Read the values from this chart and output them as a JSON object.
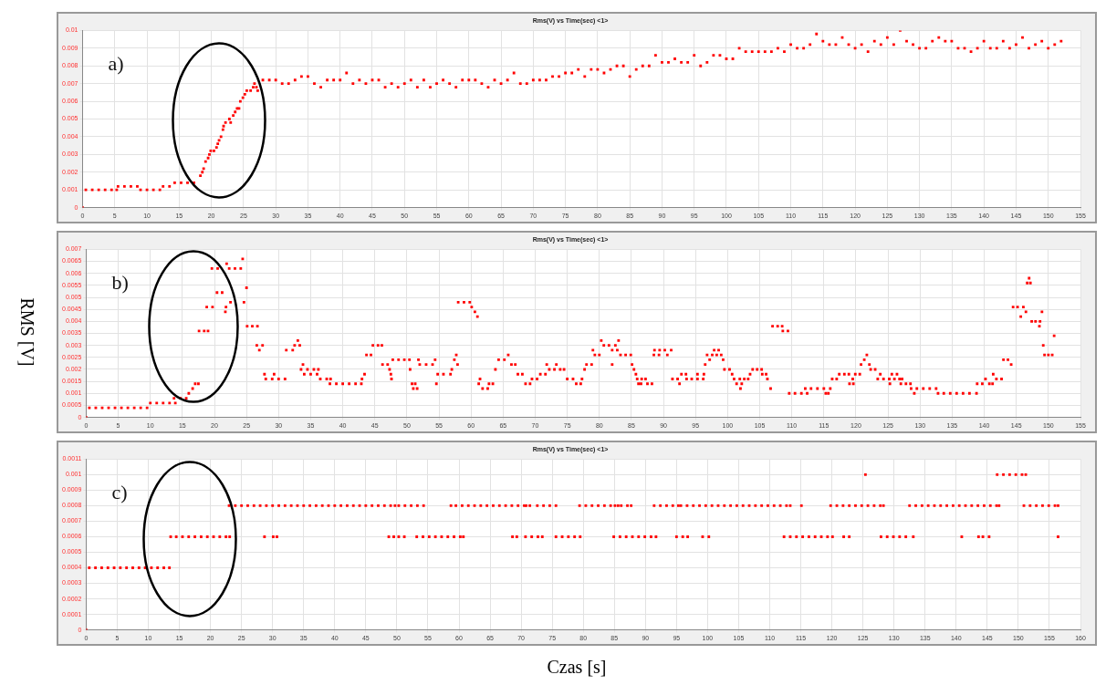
{
  "chart_data": [
    {
      "type": "scatter",
      "title": "Rms(V) vs Time(sec) <1>",
      "annotations": [
        "a)"
      ],
      "marker": "square",
      "grid": true,
      "xlim": [
        0,
        155
      ],
      "xticks": [
        0,
        5,
        10,
        15,
        20,
        25,
        30,
        35,
        40,
        45,
        50,
        55,
        60,
        65,
        70,
        75,
        80,
        85,
        90,
        95,
        100,
        105,
        110,
        115,
        120,
        125,
        130,
        135,
        140,
        145,
        150,
        155
      ],
      "ylim": [
        0,
        0.01
      ],
      "yticks": [
        0,
        0.001,
        0.002,
        0.003,
        0.004,
        0.005,
        0.006,
        0.007,
        0.008,
        0.009,
        0.01
      ],
      "series": [
        {
          "color": "#ff0000",
          "x": [
            0,
            0.5,
            1.5,
            2.5,
            3.5,
            4.5,
            5.3,
            5.5,
            6.5,
            7.5,
            8.5,
            9,
            10,
            11,
            12,
            12.5,
            13.5,
            14.3,
            15.3,
            16.3,
            17.3,
            18.3,
            18.6,
            18.8,
            19.1,
            19.5,
            19.7,
            19.9,
            20.4,
            20.8,
            21,
            21.2,
            21.5,
            21.8,
            21.9,
            22.2,
            22.8,
            23,
            23.4,
            23.7,
            24,
            24.3,
            24.5,
            24.9,
            25.2,
            25.5,
            26.1,
            26.5,
            26.7,
            27,
            27.2,
            28,
            29,
            30,
            31,
            32,
            33,
            34,
            35,
            36,
            37,
            38,
            39,
            40,
            41,
            42,
            43,
            44,
            45,
            46,
            47,
            48,
            49,
            50,
            51,
            52,
            53,
            54,
            55,
            56,
            57,
            58,
            59,
            60,
            61,
            62,
            63,
            64,
            65,
            66,
            67,
            68,
            69,
            70,
            71,
            72,
            73,
            74,
            75,
            76,
            77,
            78,
            79,
            80,
            81,
            82,
            83,
            84,
            85,
            86,
            87,
            88,
            89,
            90,
            91,
            92,
            93,
            94,
            95,
            96,
            97,
            98,
            99,
            100,
            101,
            102,
            103,
            104,
            105,
            106,
            107,
            108,
            109,
            110,
            111,
            112,
            113,
            114,
            115,
            116,
            117,
            118,
            119,
            120,
            121,
            122,
            123,
            124,
            125,
            126,
            127,
            128,
            129,
            130,
            131,
            132,
            133,
            134,
            135,
            136,
            137,
            138,
            139,
            140,
            141,
            142,
            143,
            144,
            145,
            146,
            147,
            148,
            149,
            150,
            151,
            152
          ],
          "values": [
            0,
            0.001,
            0.001,
            0.001,
            0.001,
            0.001,
            0.001,
            0.0012,
            0.0012,
            0.0012,
            0.0012,
            0.001,
            0.001,
            0.001,
            0.001,
            0.0012,
            0.0012,
            0.0014,
            0.0014,
            0.0014,
            0.0014,
            0.0018,
            0.002,
            0.0022,
            0.0026,
            0.0028,
            0.003,
            0.0032,
            0.0032,
            0.0034,
            0.0036,
            0.0038,
            0.004,
            0.0044,
            0.0046,
            0.0048,
            0.005,
            0.0048,
            0.0052,
            0.0054,
            0.0056,
            0.0056,
            0.006,
            0.0062,
            0.0064,
            0.0066,
            0.0066,
            0.0068,
            0.007,
            0.0068,
            0.0066,
            0.0072,
            0.0072,
            0.0072,
            0.007,
            0.007,
            0.0072,
            0.0074,
            0.0074,
            0.007,
            0.0068,
            0.0072,
            0.0072,
            0.0072,
            0.0076,
            0.007,
            0.0072,
            0.007,
            0.0072,
            0.0072,
            0.0068,
            0.007,
            0.0068,
            0.007,
            0.0072,
            0.0068,
            0.0072,
            0.0068,
            0.007,
            0.0072,
            0.007,
            0.0068,
            0.0072,
            0.0072,
            0.0072,
            0.007,
            0.0068,
            0.0072,
            0.007,
            0.0072,
            0.0076,
            0.007,
            0.007,
            0.0072,
            0.0072,
            0.0072,
            0.0074,
            0.0074,
            0.0076,
            0.0076,
            0.0078,
            0.0074,
            0.0078,
            0.0078,
            0.0076,
            0.0078,
            0.008,
            0.008,
            0.0074,
            0.0078,
            0.008,
            0.008,
            0.0086,
            0.0082,
            0.0082,
            0.0084,
            0.0082,
            0.0082,
            0.0086,
            0.008,
            0.0082,
            0.0086,
            0.0086,
            0.0084,
            0.0084,
            0.009,
            0.0088,
            0.0088,
            0.0088,
            0.0088,
            0.0088,
            0.009,
            0.0088,
            0.0092,
            0.009,
            0.009,
            0.0092,
            0.0098,
            0.0094,
            0.0092,
            0.0092,
            0.0096,
            0.0092,
            0.009,
            0.0092,
            0.0088,
            0.0094,
            0.0092,
            0.0096,
            0.0092,
            0.01,
            0.0094,
            0.0092,
            0.009,
            0.009,
            0.0094,
            0.0096,
            0.0094,
            0.0094,
            0.009,
            0.009,
            0.0088,
            0.009,
            0.0094,
            0.009,
            0.009,
            0.0094,
            0.009,
            0.0092,
            0.0096,
            0.009,
            0.0092,
            0.0094,
            0.009,
            0.0092,
            0.0094
          ]
        }
      ]
    },
    {
      "type": "scatter",
      "title": "Rms(V) vs Time(sec) <1>",
      "annotations": [
        "b)"
      ],
      "ylabel": "RMS [V]",
      "marker": "square",
      "grid": true,
      "xlim": [
        0,
        155
      ],
      "xticks": [
        0,
        5,
        10,
        15,
        20,
        25,
        30,
        35,
        40,
        45,
        50,
        55,
        60,
        65,
        70,
        75,
        80,
        85,
        90,
        95,
        100,
        105,
        110,
        115,
        120,
        125,
        130,
        135,
        140,
        145,
        150,
        155
      ],
      "ylim": [
        0,
        0.007
      ],
      "yticks": [
        0,
        0.0005,
        0.001,
        0.0015,
        0.002,
        0.0025,
        0.003,
        0.0035,
        0.004,
        0.0045,
        0.005,
        0.0055,
        0.006,
        0.0065,
        0.007
      ],
      "series": [
        {
          "color": "#ff0000",
          "x": [
            0,
            0.5,
            1.5,
            2.5,
            3.5,
            4.5,
            5.5,
            6.5,
            7.5,
            8.5,
            9.5,
            10,
            11,
            12,
            13,
            13.9,
            13.7,
            14.7,
            15.6,
            16,
            16.6,
            17,
            17.5,
            17.6,
            18.4,
            19,
            18.8,
            19.7,
            19.6,
            20.5,
            20.4,
            21.2,
            21.7,
            21.8,
            21.9,
            22.3,
            22.5,
            23.2,
            24.1,
            24.4,
            24.6,
            25,
            25.1,
            25.9,
            26.7,
            26.6,
            27.5,
            27,
            27.8,
            28,
            29,
            29.3,
            30,
            31,
            31.2,
            32.2,
            32.5,
            33.3,
            33,
            33.5,
            33.8,
            34,
            34.5,
            35,
            35.5,
            36.2,
            36,
            36.5,
            37.5,
            38.1,
            38,
            39,
            40,
            41,
            42,
            42.9,
            43,
            43.4,
            43.7,
            44.4,
            44.7,
            45.5,
            46.1,
            46.2,
            47,
            47.3,
            47.5,
            47.6,
            47.8,
            48.7,
            49.6,
            50.4,
            50.5,
            50.8,
            51,
            51.6,
            51.3,
            51.8,
            52,
            53,
            54,
            54.4,
            54.6,
            54.8,
            55.7,
            56.8,
            57,
            57.4,
            57.7,
            57.9,
            58,
            58.9,
            59.8,
            60.1,
            60.6,
            61,
            61.2,
            61.4,
            61.8,
            62.6,
            62.8,
            63.4,
            63.8,
            64.3,
            65.2,
            65.8,
            66.3,
            66.9,
            67.3,
            68,
            68.5,
            69.2,
            69.5,
            70.3,
            70.8,
            71.6,
            71.8,
            72.2,
            73,
            73.3,
            73.9,
            74.5,
            75,
            75.9,
            76.4,
            77.1,
            77.3,
            77.7,
            78,
            78.8,
            79,
            79.3,
            80,
            80.3,
            80.7,
            81.5,
            82,
            82,
            82.5,
            82.8,
            83,
            83.3,
            84.1,
            84.9,
            85.1,
            85.4,
            85.7,
            85.9,
            86.1,
            86.6,
            87.2,
            86.5,
            87.5,
            88.2,
            88.5,
            88.6,
            89.3,
            89.4,
            90.2,
            90.6,
            91.2,
            91.4,
            92.2,
            92.5,
            92.8,
            93.5,
            93.6,
            94.4,
            95.3,
            95.3,
            96.2,
            96.3,
            96.5,
            96.8,
            97.2,
            97.6,
            97.9,
            98.6,
            98.3,
            99,
            99.3,
            99.5,
            100.3,
            100.7,
            101,
            101.4,
            102,
            102.2,
            101.9,
            102.6,
            103.2,
            103.5,
            103.9,
            104.6,
            105.3,
            105.4,
            106,
            106.2,
            106.7,
            107,
            107.8,
            108.5,
            108.6,
            109.4,
            109.6,
            110.5,
            111.5,
            112.4,
            112.1,
            113,
            114,
            115,
            116,
            115.3,
            115.7,
            116.3,
            117,
            117.4,
            118.2,
            118.9,
            119,
            119.6,
            119.5,
            119.9,
            120.6,
            120.8,
            121.3,
            121.7,
            122.1,
            122.3,
            123,
            123.4,
            123.8,
            124.3,
            125.3,
            125.2,
            125.6,
            126,
            126.4,
            126.8,
            127.2,
            127,
            127.8,
            128.5,
            128.6,
            129.1,
            129.5,
            130.5,
            131.5,
            132.5,
            132.8,
            133.7,
            134.7,
            135.7,
            136.7,
            137.7,
            138.8,
            138.9,
            139.7,
            140.2,
            140.8,
            141.3,
            141.4,
            141.9,
            142.7,
            143,
            143.7,
            144.2,
            144.5,
            145.2,
            145.7,
            146.1,
            146.5,
            146.7,
            147,
            147.2,
            147.4,
            148,
            148.6,
            148.7,
            149,
            149.2,
            149.4,
            150,
            150.6,
            150.9
          ],
          "values": [
            0,
            0.0004,
            0.0004,
            0.0004,
            0.0004,
            0.0004,
            0.0004,
            0.0004,
            0.0004,
            0.0004,
            0.0004,
            0.0006,
            0.0006,
            0.0006,
            0.0006,
            0.0006,
            0.0008,
            0.0008,
            0.0008,
            0.001,
            0.0012,
            0.0014,
            0.0014,
            0.0036,
            0.0036,
            0.0036,
            0.0046,
            0.0046,
            0.0062,
            0.0062,
            0.0052,
            0.0052,
            0.0044,
            0.0046,
            0.0064,
            0.0062,
            0.0048,
            0.0062,
            0.0062,
            0.0066,
            0.0048,
            0.0054,
            0.0038,
            0.0038,
            0.0038,
            0.003,
            0.003,
            0.0028,
            0.0018,
            0.0016,
            0.0016,
            0.0018,
            0.0016,
            0.0016,
            0.0028,
            0.0028,
            0.003,
            0.003,
            0.0032,
            0.002,
            0.0022,
            0.0018,
            0.002,
            0.0018,
            0.002,
            0.002,
            0.0018,
            0.0016,
            0.0016,
            0.0016,
            0.0014,
            0.0014,
            0.0014,
            0.0014,
            0.0014,
            0.0014,
            0.0016,
            0.0018,
            0.0026,
            0.0026,
            0.003,
            0.003,
            0.003,
            0.0022,
            0.0022,
            0.002,
            0.0018,
            0.0016,
            0.0024,
            0.0024,
            0.0024,
            0.0024,
            0.002,
            0.0014,
            0.0012,
            0.0012,
            0.0014,
            0.0024,
            0.0022,
            0.0022,
            0.0022,
            0.0024,
            0.0014,
            0.0018,
            0.0018,
            0.0018,
            0.002,
            0.0024,
            0.0026,
            0.0022,
            0.0048,
            0.0048,
            0.0048,
            0.0046,
            0.0044,
            0.0042,
            0.0014,
            0.0016,
            0.0012,
            0.0012,
            0.0014,
            0.0014,
            0.002,
            0.0024,
            0.0024,
            0.0026,
            0.0022,
            0.0022,
            0.0018,
            0.0018,
            0.0014,
            0.0014,
            0.0016,
            0.0016,
            0.0018,
            0.0018,
            0.0022,
            0.002,
            0.002,
            0.0022,
            0.002,
            0.002,
            0.0016,
            0.0016,
            0.0014,
            0.0014,
            0.0016,
            0.002,
            0.0022,
            0.0022,
            0.0028,
            0.0026,
            0.0026,
            0.0032,
            0.003,
            0.003,
            0.0022,
            0.0028,
            0.003,
            0.0028,
            0.0032,
            0.0026,
            0.0026,
            0.0026,
            0.0022,
            0.002,
            0.0018,
            0.0016,
            0.0014,
            0.0016,
            0.0016,
            0.0014,
            0.0014,
            0.0014,
            0.0026,
            0.0028,
            0.0026,
            0.0028,
            0.0028,
            0.0026,
            0.0028,
            0.0016,
            0.0016,
            0.0014,
            0.0018,
            0.0018,
            0.0016,
            0.0016,
            0.0016,
            0.0018,
            0.0016,
            0.0018,
            0.0022,
            0.0026,
            0.0024,
            0.0026,
            0.0028,
            0.0028,
            0.0026,
            0.0026,
            0.0024,
            0.002,
            0.002,
            0.0018,
            0.0016,
            0.0014,
            0.0012,
            0.0014,
            0.0016,
            0.0016,
            0.0016,
            0.0018,
            0.002,
            0.002,
            0.002,
            0.0018,
            0.0018,
            0.0016,
            0.0012,
            0.0038,
            0.0038,
            0.0038,
            0.0036,
            0.0036,
            0.001,
            0.001,
            0.001,
            0.001,
            0.0012,
            0.0012,
            0.0012,
            0.0012,
            0.0012,
            0.001,
            0.001,
            0.0016,
            0.0016,
            0.0018,
            0.0018,
            0.0018,
            0.0014,
            0.0014,
            0.0016,
            0.0018,
            0.0018,
            0.0022,
            0.0024,
            0.0026,
            0.0022,
            0.002,
            0.002,
            0.0016,
            0.0018,
            0.0016,
            0.0014,
            0.0016,
            0.0018,
            0.0016,
            0.0018,
            0.0016,
            0.0016,
            0.0014,
            0.0014,
            0.0014,
            0.0012,
            0.001,
            0.0012,
            0.0012,
            0.0012,
            0.0012,
            0.001,
            0.001,
            0.001,
            0.001,
            0.001,
            0.001,
            0.001,
            0.0014,
            0.0014,
            0.0016,
            0.0014,
            0.0014,
            0.0018,
            0.0016,
            0.0016,
            0.0024,
            0.0024,
            0.0022,
            0.0046,
            0.0046,
            0.0042,
            0.0046,
            0.0044,
            0.0056,
            0.0058,
            0.0056,
            0.004,
            0.004,
            0.0038,
            0.004,
            0.0044,
            0.003,
            0.0026,
            0.0026,
            0.0026,
            0.0034
          ]
        }
      ]
    },
    {
      "type": "scatter",
      "title": "Rms(V) vs Time(sec) <1>",
      "annotations": [
        "c)"
      ],
      "xlabel": "Czas [s]",
      "marker": "square",
      "grid": true,
      "xlim": [
        0,
        160
      ],
      "xticks": [
        0,
        5,
        10,
        15,
        20,
        25,
        30,
        35,
        40,
        45,
        50,
        55,
        60,
        65,
        70,
        75,
        80,
        85,
        90,
        95,
        100,
        105,
        110,
        115,
        120,
        125,
        130,
        135,
        140,
        145,
        150,
        155,
        160
      ],
      "ylim": [
        0,
        0.0011
      ],
      "yticks": [
        0,
        0.0001,
        0.0002,
        0.0003,
        0.0004,
        0.0005,
        0.0006,
        0.0007,
        0.0008,
        0.0009,
        0.001,
        0.0011
      ],
      "series": [
        {
          "color": "#ff0000",
          "x": [
            0,
            0.5,
            1.5,
            2.5,
            3.5,
            4.5,
            5.5,
            6.5,
            7.5,
            8.5,
            9.5,
            10.5,
            11.5,
            12.5,
            13.4,
            13.6,
            14.5,
            15.5,
            16.5,
            17.5,
            18.5,
            19.5,
            20.5,
            21.5,
            22.5,
            23.1,
            23,
            24,
            25,
            26,
            27,
            28,
            29,
            30,
            31,
            32,
            33,
            34,
            35,
            36,
            37,
            38,
            39,
            40,
            41,
            42,
            43,
            44,
            45,
            46,
            47,
            48,
            49,
            49.7,
            28.7,
            30.1,
            30.7,
            48.7,
            49.5,
            50.3,
            51.2,
            50.3,
            51.3,
            52.3,
            53.3,
            54.3,
            53.2,
            54.2,
            55.2,
            56.2,
            57.2,
            58.2,
            59.2,
            60.2,
            60.7,
            58.7,
            59.5,
            60.5,
            61.5,
            62.5,
            63.5,
            64.5,
            65.5,
            66.5,
            67.5,
            68.5,
            69.5,
            70.5,
            70.8,
            71.4,
            72.6,
            73.6,
            74.6,
            75.6,
            68.6,
            69.3,
            70.7,
            71.7,
            72.7,
            73.4,
            75.6,
            76.6,
            77.6,
            78.6,
            79.5,
            79.4,
            80.4,
            81.4,
            82.4,
            83.4,
            84.4,
            85.1,
            85.6,
            86.1,
            87.1,
            87.7,
            91.4,
            92.4,
            93.4,
            94.4,
            95.3,
            95.7,
            96.7,
            97.7,
            98.7,
            99.7,
            100.7,
            101.7,
            102.7,
            103.7,
            104.7,
            105.7,
            106.7,
            107.7,
            108.7,
            109.7,
            110.7,
            111.7,
            112.7,
            113.3,
            84.9,
            85.9,
            86.9,
            87.9,
            88.9,
            89.9,
            90.9,
            91.7,
            95,
            96,
            96.8,
            99.2,
            100.2,
            112.3,
            113.3,
            114.3,
            115.3,
            116.3,
            117.3,
            118.3,
            119.3,
            120.1,
            121.9,
            122.8,
            127.9,
            128.9,
            129.9,
            130.9,
            131.9,
            133.1,
            140.9,
            143.6,
            144.3,
            145.3,
            156.4,
            115.1,
            119.8,
            120.8,
            121.8,
            122.8,
            123.8,
            124.8,
            125.8,
            126.8,
            127.8,
            128.3,
            132.5,
            133.5,
            134.5,
            135.5,
            136.5,
            137.5,
            138.5,
            139.5,
            140.5,
            141.5,
            142.5,
            143.5,
            144.5,
            145.5,
            146.5,
            146.9,
            150.9,
            151.9,
            152.9,
            153.9,
            154.9,
            155.9,
            156.4,
            125.4,
            146.6,
            147.6,
            148.6,
            149.6,
            150.6,
            151.2
          ],
          "values": [
            0,
            0.0004,
            0.0004,
            0.0004,
            0.0004,
            0.0004,
            0.0004,
            0.0004,
            0.0004,
            0.0004,
            0.0004,
            0.0004,
            0.0004,
            0.0004,
            0.0004,
            0.0006,
            0.0006,
            0.0006,
            0.0006,
            0.0006,
            0.0006,
            0.0006,
            0.0006,
            0.0006,
            0.0006,
            0.0006,
            0.0008,
            0.0008,
            0.0008,
            0.0008,
            0.0008,
            0.0008,
            0.0008,
            0.0008,
            0.0008,
            0.0008,
            0.0008,
            0.0008,
            0.0008,
            0.0008,
            0.0008,
            0.0008,
            0.0008,
            0.0008,
            0.0008,
            0.0008,
            0.0008,
            0.0008,
            0.0008,
            0.0008,
            0.0008,
            0.0008,
            0.0008,
            0.0008,
            0.0006,
            0.0006,
            0.0006,
            0.0006,
            0.0006,
            0.0006,
            0.0006,
            0.0008,
            0.0008,
            0.0008,
            0.0008,
            0.0008,
            0.0006,
            0.0006,
            0.0006,
            0.0006,
            0.0006,
            0.0006,
            0.0006,
            0.0006,
            0.0006,
            0.0008,
            0.0008,
            0.0008,
            0.0008,
            0.0008,
            0.0008,
            0.0008,
            0.0008,
            0.0008,
            0.0008,
            0.0008,
            0.0008,
            0.0008,
            0.0008,
            0.0008,
            0.0008,
            0.0008,
            0.0008,
            0.0008,
            0.0006,
            0.0006,
            0.0006,
            0.0006,
            0.0006,
            0.0006,
            0.0006,
            0.0006,
            0.0006,
            0.0006,
            0.0006,
            0.0008,
            0.0008,
            0.0008,
            0.0008,
            0.0008,
            0.0008,
            0.0008,
            0.0008,
            0.0008,
            0.0008,
            0.0008,
            0.0008,
            0.0008,
            0.0008,
            0.0008,
            0.0008,
            0.0008,
            0.0008,
            0.0008,
            0.0008,
            0.0008,
            0.0008,
            0.0008,
            0.0008,
            0.0008,
            0.0008,
            0.0008,
            0.0008,
            0.0008,
            0.0008,
            0.0008,
            0.0008,
            0.0008,
            0.0008,
            0.0008,
            0.0006,
            0.0006,
            0.0006,
            0.0006,
            0.0006,
            0.0006,
            0.0006,
            0.0006,
            0.0006,
            0.0006,
            0.0006,
            0.0006,
            0.0006,
            0.0006,
            0.0006,
            0.0006,
            0.0006,
            0.0006,
            0.0006,
            0.0006,
            0.0006,
            0.0006,
            0.0006,
            0.0006,
            0.0006,
            0.0006,
            0.0006,
            0.0006,
            0.0006,
            0.0006,
            0.0006,
            0.0006,
            0.0006,
            0.0006,
            0.0006,
            0.0008,
            0.0008,
            0.0008,
            0.0008,
            0.0008,
            0.0008,
            0.0008,
            0.0008,
            0.0008,
            0.0008,
            0.0008,
            0.0008,
            0.0008,
            0.0008,
            0.0008,
            0.0008,
            0.0008,
            0.0008,
            0.0008,
            0.0008,
            0.0008,
            0.0008,
            0.0008,
            0.0008,
            0.0008,
            0.0008,
            0.0008,
            0.0008,
            0.0008,
            0.0008,
            0.0008,
            0.0008,
            0.0008,
            0.0008,
            0.001,
            0.001,
            0.001,
            0.001,
            0.001,
            0.001,
            0.001
          ]
        }
      ]
    }
  ]
}
